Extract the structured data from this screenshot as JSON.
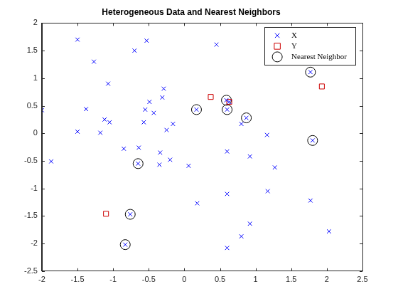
{
  "chart_data": {
    "type": "scatter",
    "title": "Heterogeneous Data and Nearest Neighbors",
    "xlim": [
      -2,
      2.5
    ],
    "xticks": [
      -2,
      -1.5,
      -1,
      -0.5,
      0,
      0.5,
      1,
      1.5,
      2,
      2.5
    ],
    "ylim": [
      -2.5,
      2
    ],
    "yticks": [
      -2.5,
      -2,
      -1.5,
      -1,
      -0.5,
      0,
      0.5,
      1,
      1.5,
      2
    ],
    "grid": false,
    "legend": "northeast",
    "series": [
      {
        "name": "X",
        "color": "#0000ff",
        "marker": "x",
        "values": [
          [
            -2.0,
            0.42
          ],
          [
            -1.87,
            -0.51
          ],
          [
            -1.5,
            1.7
          ],
          [
            -1.5,
            0.03
          ],
          [
            -1.38,
            0.44
          ],
          [
            -1.27,
            1.3
          ],
          [
            -1.18,
            0.01
          ],
          [
            -1.12,
            0.25
          ],
          [
            -1.07,
            0.9
          ],
          [
            -1.05,
            0.2
          ],
          [
            -0.85,
            -0.28
          ],
          [
            -0.83,
            -2.02
          ],
          [
            -0.76,
            -1.47
          ],
          [
            -0.7,
            1.5
          ],
          [
            -0.65,
            -0.55
          ],
          [
            -0.64,
            -0.26
          ],
          [
            -0.57,
            0.2
          ],
          [
            -0.55,
            0.43
          ],
          [
            -0.53,
            1.68
          ],
          [
            -0.49,
            0.57
          ],
          [
            -0.43,
            0.37
          ],
          [
            -0.35,
            -0.57
          ],
          [
            -0.34,
            -0.35
          ],
          [
            -0.31,
            0.65
          ],
          [
            -0.29,
            0.81
          ],
          [
            -0.25,
            0.06
          ],
          [
            -0.2,
            -0.48
          ],
          [
            -0.16,
            0.17
          ],
          [
            0.06,
            -0.59
          ],
          [
            0.17,
            0.43
          ],
          [
            0.18,
            -1.27
          ],
          [
            0.45,
            1.61
          ],
          [
            0.59,
            0.6
          ],
          [
            0.6,
            0.43
          ],
          [
            0.6,
            -0.33
          ],
          [
            0.6,
            -1.1
          ],
          [
            0.6,
            -2.08
          ],
          [
            0.63,
            0.57
          ],
          [
            0.8,
            0.17
          ],
          [
            0.8,
            -1.87
          ],
          [
            0.87,
            0.28
          ],
          [
            0.92,
            -0.42
          ],
          [
            0.92,
            -1.64
          ],
          [
            1.16,
            -0.03
          ],
          [
            1.17,
            -1.05
          ],
          [
            1.27,
            -0.62
          ],
          [
            1.77,
            -1.22
          ],
          [
            1.77,
            1.11
          ],
          [
            1.8,
            -0.13
          ],
          [
            2.03,
            -1.78
          ]
        ]
      },
      {
        "name": "Y",
        "color": "#cc0000",
        "marker": "square",
        "values": [
          [
            0.37,
            0.66
          ],
          [
            0.63,
            0.57
          ],
          [
            1.93,
            0.85
          ],
          [
            -1.1,
            -1.46
          ]
        ]
      },
      {
        "name": "Nearest Neighbor",
        "color": "#000000",
        "marker": "circle",
        "values": [
          [
            -0.83,
            -2.02
          ],
          [
            -0.76,
            -1.47
          ],
          [
            -0.65,
            -0.55
          ],
          [
            0.17,
            0.43
          ],
          [
            0.59,
            0.6
          ],
          [
            0.6,
            0.43
          ],
          [
            0.87,
            0.28
          ],
          [
            1.77,
            1.11
          ],
          [
            1.8,
            -0.13
          ]
        ]
      }
    ]
  }
}
